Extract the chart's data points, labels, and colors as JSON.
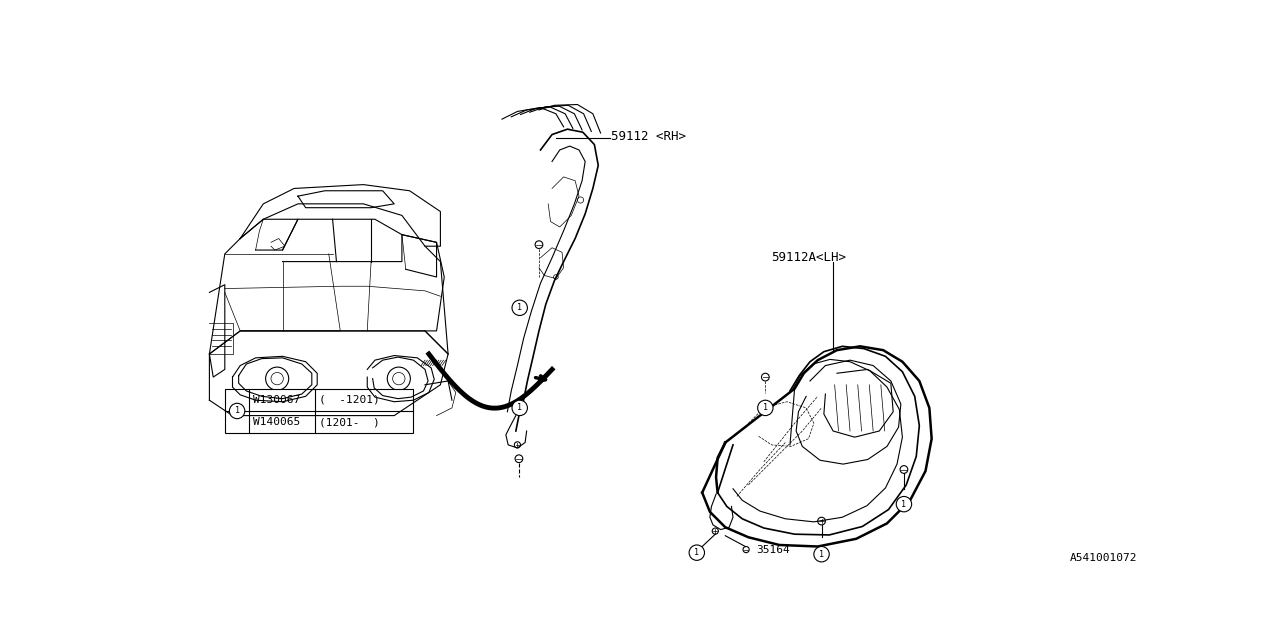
{
  "bg_color": "#ffffff",
  "line_color": "#000000",
  "fig_width": 12.8,
  "fig_height": 6.4,
  "diagram_id": "A541001072",
  "labels": {
    "part1_rh": "59112 <RH>",
    "part1_lh": "59112A<LH>",
    "part2": "35164"
  },
  "table": {
    "col1": [
      "W130067",
      "W140065"
    ],
    "col2": [
      "(  -1201)",
      "(1201-  )"
    ]
  }
}
